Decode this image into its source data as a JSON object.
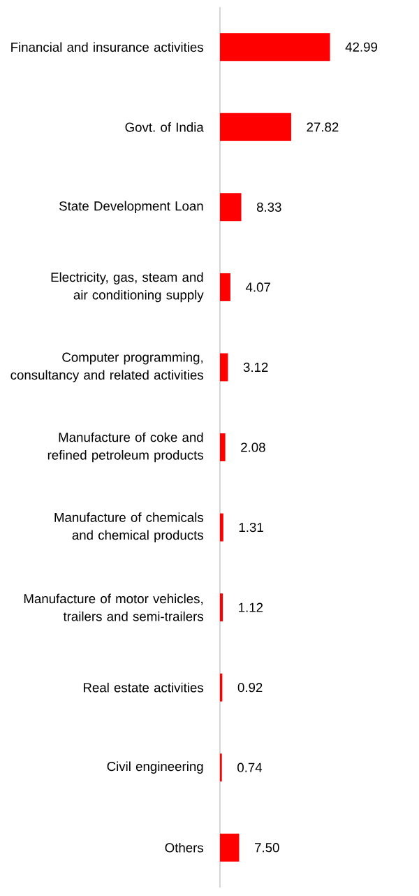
{
  "chart_data": {
    "type": "bar",
    "orientation": "horizontal",
    "color": "#ff0000",
    "categories": [
      "Financial and insurance activities",
      "Govt. of India",
      "State Development Loan",
      "Electricity, gas, steam and air conditioning supply",
      "Computer programming, consultancy and related activities",
      "Manufacture of coke and refined petroleum products",
      "Manufacture of chemicals and chemical products",
      "Manufacture of motor vehicles, trailers and semi-trailers",
      "Real estate activities",
      "Civil engineering",
      "Others"
    ],
    "values": [
      42.99,
      27.82,
      8.33,
      4.07,
      3.12,
      2.08,
      1.31,
      1.12,
      0.92,
      0.74,
      7.5
    ],
    "value_labels": [
      "42.99",
      "27.82",
      "8.33",
      "4.07",
      "3.12",
      "2.08",
      "1.31",
      "1.12",
      "0.92",
      "0.74",
      "7.50"
    ],
    "grid": false
  }
}
